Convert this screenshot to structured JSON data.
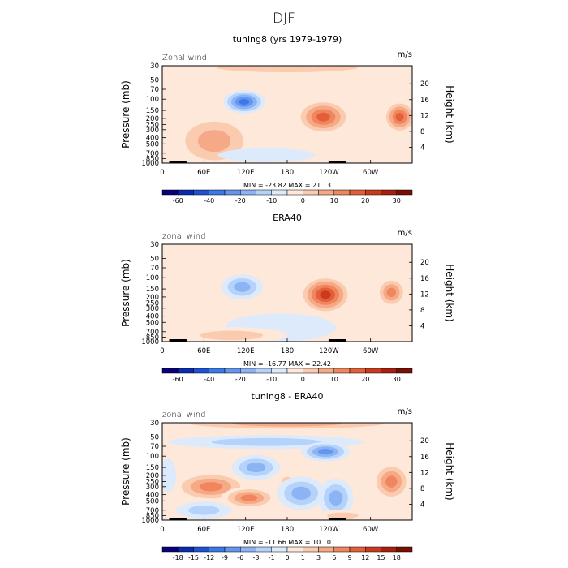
{
  "figure_title": "DJF",
  "chart_data": [
    {
      "type": "heatmap",
      "title": "tuning8 (yrs 1979-1979)",
      "field_label": "Zonal wind",
      "units": "m/s",
      "ylabel": "Pressure (mb)",
      "y2label": "Height (km)",
      "x_ticks": [
        "0",
        "60E",
        "120E",
        "180",
        "120W",
        "60W"
      ],
      "x_tick_values": [
        0,
        60,
        120,
        180,
        240,
        300
      ],
      "xlim": [
        0,
        360
      ],
      "y_ticks": [
        "30",
        "50",
        "70",
        "100",
        "150",
        "200",
        "250",
        "300",
        "400",
        "500",
        "700",
        "850",
        "1000"
      ],
      "y_tick_values": [
        30,
        50,
        70,
        100,
        150,
        200,
        250,
        300,
        400,
        500,
        700,
        850,
        1000
      ],
      "ylim": [
        1000,
        30
      ],
      "height_ticks": [
        "4",
        "8",
        "12",
        "16",
        "20"
      ],
      "height_tick_values": [
        4,
        8,
        12,
        16,
        20
      ],
      "stats": "MIN = -23.82   MAX =  21.13",
      "min": -23.82,
      "max": 21.13,
      "colorbar_labels": [
        "-60",
        "-40",
        "-20",
        "-10",
        "0",
        "10",
        "20",
        "30"
      ],
      "colorbar_label_positions": [
        1,
        3,
        5,
        7,
        9,
        11,
        13,
        15
      ],
      "colorbar_colors": [
        "#08007a",
        "#0a2ab0",
        "#1e52d2",
        "#3c78e6",
        "#6496f0",
        "#8cb4f5",
        "#b4d2fa",
        "#dceafc",
        "#fde8da",
        "#fbcbb0",
        "#f6a986",
        "#f0865e",
        "#e45f39",
        "#cc3a1e",
        "#a5200f",
        "#781005"
      ],
      "features": [
        {
          "name": "jet-core-120E",
          "lon": 118,
          "p": 110,
          "value": -22,
          "rx": 30,
          "ry": 0.42
        },
        {
          "name": "subtropical-jet-120W",
          "lon": 232,
          "p": 190,
          "value": 21,
          "rx": 40,
          "ry": 0.65
        },
        {
          "name": "jet-60W",
          "lon": 342,
          "p": 190,
          "value": 18,
          "rx": 24,
          "ry": 0.6
        },
        {
          "name": "weak-westerly-60E",
          "lon": 75,
          "p": 450,
          "value": 8,
          "rx": 60,
          "ry": 1.0
        },
        {
          "name": "upper-westerly-band",
          "lon": 180,
          "p": 32,
          "value": 4,
          "rx": 180,
          "ry": 0.3
        },
        {
          "name": "surface-easterly",
          "lon": 150,
          "p": 750,
          "value": -4,
          "rx": 70,
          "ry": 0.25
        }
      ]
    },
    {
      "type": "heatmap",
      "title": "ERA40",
      "field_label": "zonal wind",
      "units": "m/s",
      "ylabel": "Pressure (mb)",
      "y2label": "Height (km)",
      "x_ticks": [
        "0",
        "60E",
        "120E",
        "180",
        "120W",
        "60W"
      ],
      "x_tick_values": [
        0,
        60,
        120,
        180,
        240,
        300
      ],
      "xlim": [
        0,
        360
      ],
      "y_ticks": [
        "30",
        "50",
        "70",
        "100",
        "150",
        "200",
        "250",
        "300",
        "400",
        "500",
        "700",
        "850",
        "1000"
      ],
      "y_tick_values": [
        30,
        50,
        70,
        100,
        150,
        200,
        250,
        300,
        400,
        500,
        700,
        850,
        1000
      ],
      "ylim": [
        1000,
        30
      ],
      "height_ticks": [
        "4",
        "8",
        "12",
        "16",
        "20"
      ],
      "height_tick_values": [
        4,
        8,
        12,
        16,
        20
      ],
      "stats": "MIN = -16.77   MAX =  22.42",
      "min": -16.77,
      "max": 22.42,
      "colorbar_labels": [
        "-60",
        "-40",
        "-20",
        "-10",
        "0",
        "10",
        "20",
        "30"
      ],
      "colorbar_label_positions": [
        1,
        3,
        5,
        7,
        9,
        11,
        13,
        15
      ],
      "colorbar_colors": [
        "#08007a",
        "#0a2ab0",
        "#1e52d2",
        "#3c78e6",
        "#6496f0",
        "#8cb4f5",
        "#b4d2fa",
        "#dceafc",
        "#fde8da",
        "#fbcbb0",
        "#f6a986",
        "#f0865e",
        "#e45f39",
        "#cc3a1e",
        "#a5200f",
        "#781005"
      ],
      "features": [
        {
          "name": "jet-core-120E",
          "lon": 115,
          "p": 140,
          "value": -15,
          "rx": 30,
          "ry": 0.45
        },
        {
          "name": "subtropical-jet-120W",
          "lon": 235,
          "p": 185,
          "value": 22,
          "rx": 38,
          "ry": 0.7
        },
        {
          "name": "jet-60W",
          "lon": 330,
          "p": 170,
          "value": 14,
          "rx": 22,
          "ry": 0.55
        },
        {
          "name": "weak-westerly-60E",
          "lon": 70,
          "p": 500,
          "value": 2,
          "rx": 60,
          "ry": 1.0
        },
        {
          "name": "lower-easterly",
          "lon": 170,
          "p": 600,
          "value": -3,
          "rx": 80,
          "ry": 0.5
        },
        {
          "name": "surface-westerly",
          "lon": 100,
          "p": 800,
          "value": 3,
          "rx": 80,
          "ry": 0.3
        }
      ]
    },
    {
      "type": "heatmap",
      "title": "tuning8 - ERA40",
      "field_label": "zonal wind",
      "units": "m/s",
      "ylabel": "Pressure (mb)",
      "y2label": "Height (km)",
      "x_ticks": [
        "0",
        "60E",
        "120E",
        "180",
        "120W",
        "60W"
      ],
      "x_tick_values": [
        0,
        60,
        120,
        180,
        240,
        300
      ],
      "xlim": [
        0,
        360
      ],
      "y_ticks": [
        "30",
        "50",
        "70",
        "100",
        "150",
        "200",
        "250",
        "300",
        "400",
        "500",
        "700",
        "850",
        "1000"
      ],
      "y_tick_values": [
        30,
        50,
        70,
        100,
        150,
        200,
        250,
        300,
        400,
        500,
        700,
        850,
        1000
      ],
      "ylim": [
        1000,
        30
      ],
      "height_ticks": [
        "4",
        "8",
        "12",
        "16",
        "20"
      ],
      "height_tick_values": [
        4,
        8,
        12,
        16,
        20
      ],
      "stats": "MIN = -11.66   MAX =  10.10",
      "min": -11.66,
      "max": 10.1,
      "colorbar_labels": [
        "-18",
        "-15",
        "-12",
        "-9",
        "-6",
        "-3",
        "-1",
        "0",
        "1",
        "3",
        "6",
        "9",
        "12",
        "15",
        "18"
      ],
      "colorbar_label_positions": [
        1,
        2,
        3,
        4,
        5,
        6,
        7,
        8,
        9,
        10,
        11,
        12,
        13,
        14,
        15
      ],
      "colorbar_colors": [
        "#08007a",
        "#0a2ab0",
        "#1e52d2",
        "#3c78e6",
        "#6496f0",
        "#8cb4f5",
        "#b4d2fa",
        "#dceafc",
        "#fde8da",
        "#fbcbb0",
        "#f6a986",
        "#f0865e",
        "#e45f39",
        "#cc3a1e",
        "#a5200f",
        "#781005"
      ],
      "features": [
        {
          "name": "upper-positive-band",
          "lon": 180,
          "p": 31,
          "value": 5,
          "rx": 200,
          "ry": 0.25
        },
        {
          "name": "negative-band-50-70",
          "lon": 150,
          "p": 60,
          "value": -4,
          "rx": 140,
          "ry": 0.25
        },
        {
          "name": "negative-core-180",
          "lon": 235,
          "p": 85,
          "value": -10,
          "rx": 35,
          "ry": 0.35
        },
        {
          "name": "negative-core-120E",
          "lon": 135,
          "p": 150,
          "value": -7,
          "rx": 35,
          "ry": 0.45
        },
        {
          "name": "positive-tilted-60E",
          "lon": 70,
          "p": 300,
          "value": 8,
          "rx": 55,
          "ry": 0.55
        },
        {
          "name": "positive-tilted-120E",
          "lon": 125,
          "p": 450,
          "value": 6,
          "rx": 40,
          "ry": 0.4
        },
        {
          "name": "positive-lobe-60W",
          "lon": 330,
          "p": 250,
          "value": 7,
          "rx": 28,
          "ry": 0.7
        },
        {
          "name": "positive-lobe-180",
          "lon": 180,
          "p": 250,
          "value": 3,
          "rx": 15,
          "ry": 0.3
        },
        {
          "name": "negative-lower-180",
          "lon": 200,
          "p": 380,
          "value": -7,
          "rx": 35,
          "ry": 0.6
        },
        {
          "name": "negative-lower-120W",
          "lon": 250,
          "p": 450,
          "value": -6,
          "rx": 25,
          "ry": 0.7
        },
        {
          "name": "negative-surface-60E",
          "lon": 60,
          "p": 700,
          "value": -5,
          "rx": 40,
          "ry": 0.3
        },
        {
          "name": "negative-west-edge",
          "lon": 8,
          "p": 200,
          "value": -3,
          "rx": 12,
          "ry": 0.6
        },
        {
          "name": "positive-surface-120W",
          "lon": 260,
          "p": 850,
          "value": 3,
          "rx": 40,
          "ry": 0.2
        }
      ]
    }
  ]
}
